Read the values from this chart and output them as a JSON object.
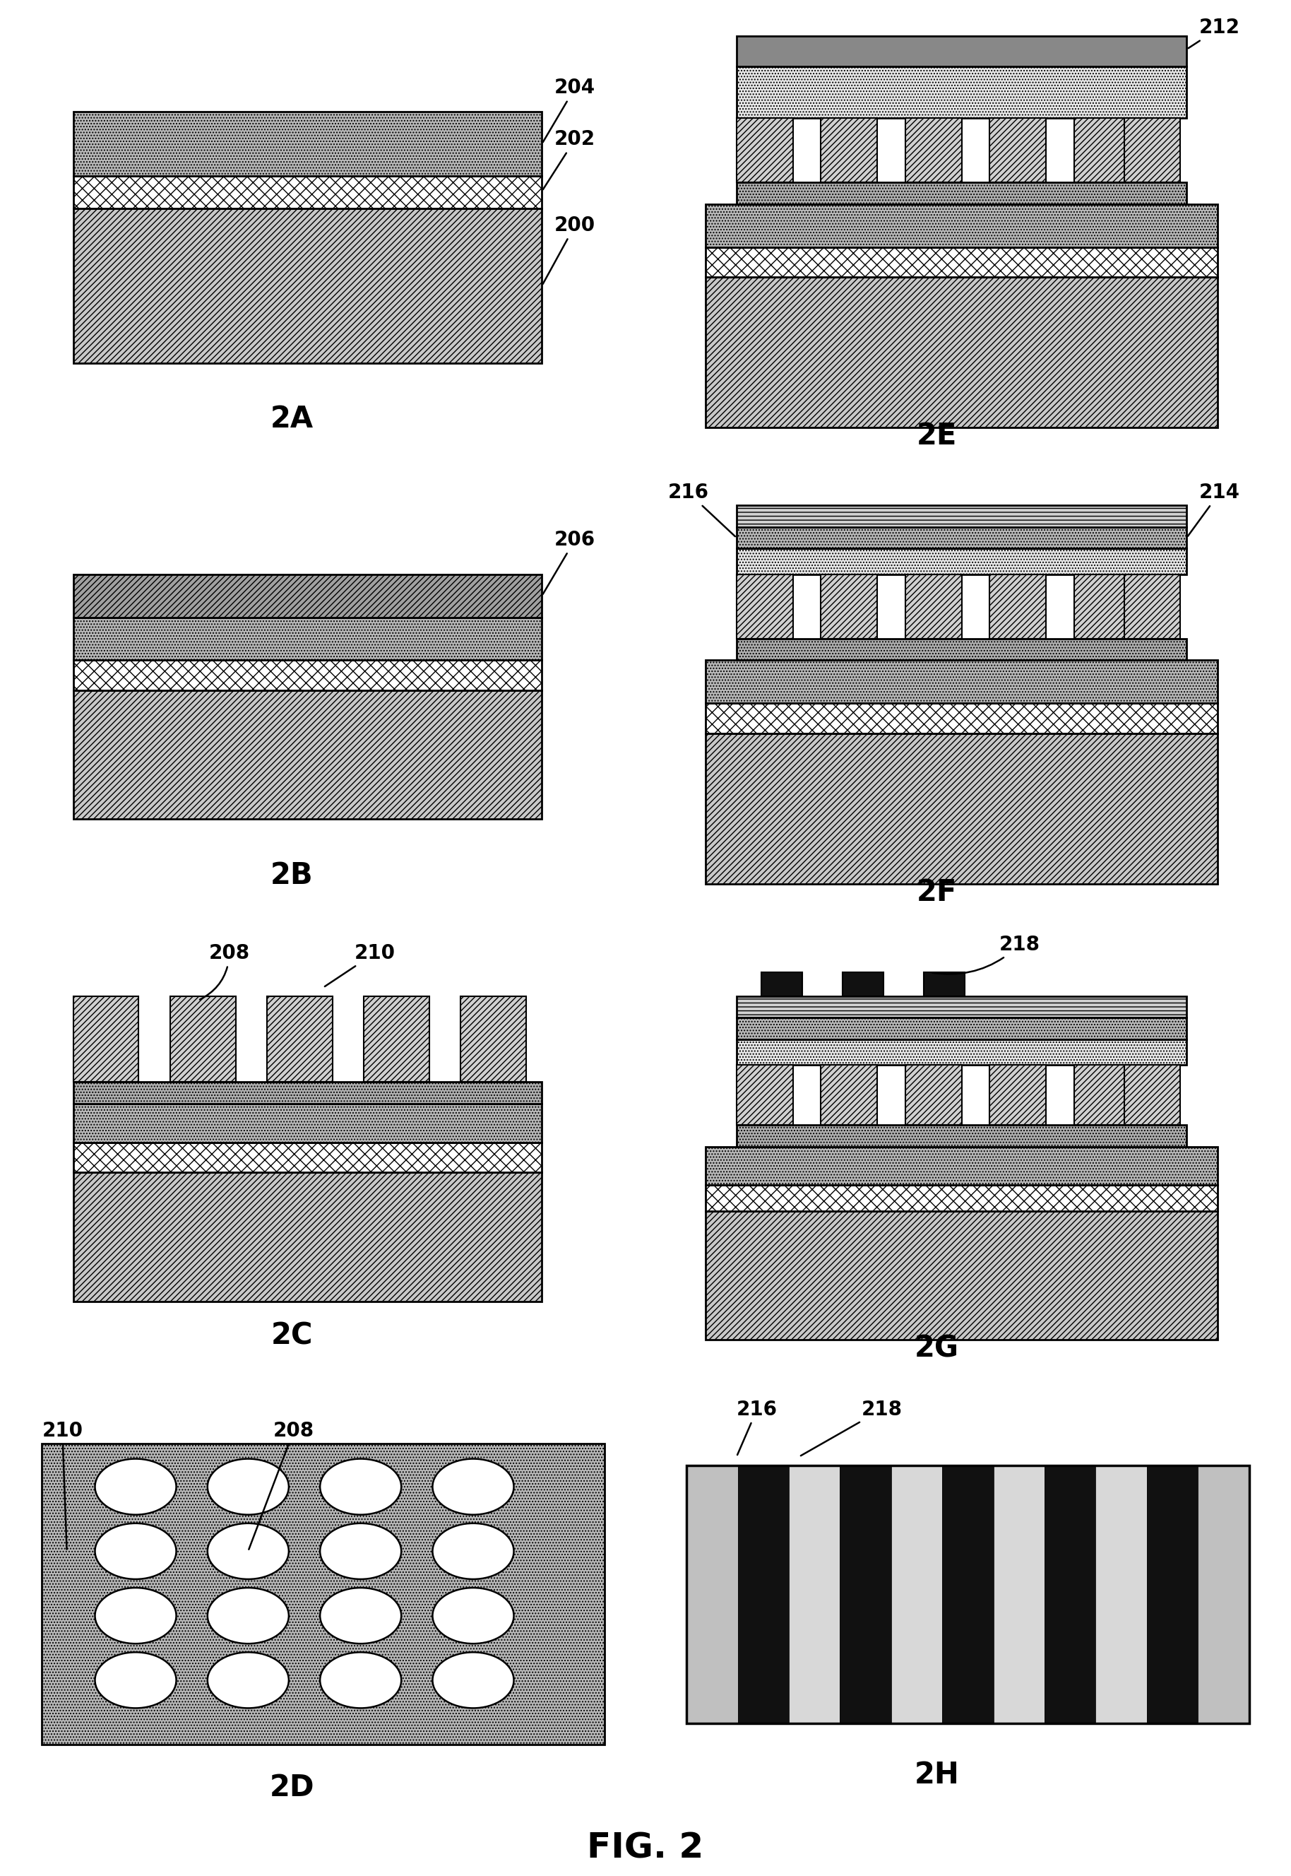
{
  "title": "FIG. 2",
  "bg": "#ffffff",
  "panel_labels": [
    "2A",
    "2B",
    "2C",
    "2D",
    "2E",
    "2F",
    "2G",
    "2H"
  ],
  "layer_colors": {
    "substrate": "#c8c8c8",
    "cross_hatch": "#ffffff",
    "dot_layer": "#b0b0b0",
    "diag_top": "#a0a0a0",
    "pillar_diag": "#d0d0d0",
    "pillar_dark": "#606060",
    "dot_top": "#e8e8e8",
    "solid_top": "#888888",
    "stripe_light": "#e0e0e0",
    "stripe_dark": "#111111",
    "contact": "#111111"
  }
}
